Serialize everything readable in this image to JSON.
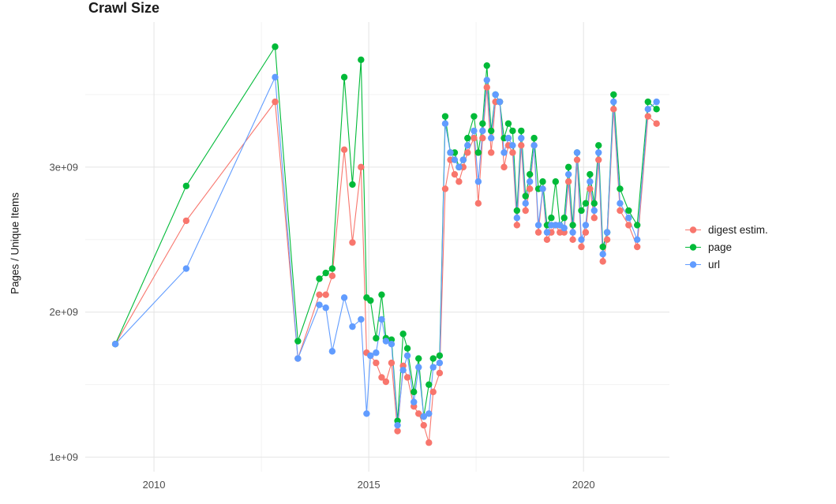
{
  "chart_data": {
    "type": "line",
    "title": "Crawl Size",
    "xlabel": "",
    "ylabel": "Pages / Unique Items",
    "grid": true,
    "legend_position": "right",
    "xlim": [
      2008.4,
      2022.0
    ],
    "ylim": [
      900000000.0,
      4000000000.0
    ],
    "x_ticks": [
      2010,
      2015,
      2020
    ],
    "x_tick_labels": [
      "2010",
      "2015",
      "2020"
    ],
    "y_ticks": [
      1000000000.0,
      2000000000.0,
      3000000000.0
    ],
    "y_tick_labels": [
      "1e+09",
      "2e+09",
      "3e+09"
    ],
    "x": [
      2009.1,
      2010.75,
      2012.82,
      2013.35,
      2013.85,
      2014.0,
      2014.15,
      2014.43,
      2014.62,
      2014.82,
      2014.95,
      2015.04,
      2015.17,
      2015.3,
      2015.4,
      2015.53,
      2015.67,
      2015.8,
      2015.9,
      2016.05,
      2016.16,
      2016.28,
      2016.4,
      2016.5,
      2016.65,
      2016.78,
      2016.9,
      2017.0,
      2017.1,
      2017.2,
      2017.3,
      2017.45,
      2017.55,
      2017.65,
      2017.75,
      2017.85,
      2017.95,
      2018.05,
      2018.15,
      2018.25,
      2018.35,
      2018.45,
      2018.55,
      2018.65,
      2018.75,
      2018.85,
      2018.95,
      2019.05,
      2019.15,
      2019.25,
      2019.35,
      2019.45,
      2019.55,
      2019.65,
      2019.75,
      2019.85,
      2019.95,
      2020.05,
      2020.15,
      2020.25,
      2020.35,
      2020.45,
      2020.55,
      2020.7,
      2020.85,
      2021.05,
      2021.25,
      2021.5,
      2021.7
    ],
    "series": [
      {
        "name": "digest estim.",
        "key": "digest-estim",
        "color": "#F8766D",
        "values": [
          1780000000.0,
          2630000000.0,
          3450000000.0,
          1680000000.0,
          2120000000.0,
          2120000000.0,
          2250000000.0,
          3120000000.0,
          2480000000.0,
          3000000000.0,
          1720000000.0,
          1700000000.0,
          1650000000.0,
          1550000000.0,
          1520000000.0,
          1650000000.0,
          1180000000.0,
          1630000000.0,
          1550000000.0,
          1350000000.0,
          1300000000.0,
          1220000000.0,
          1100000000.0,
          1450000000.0,
          1580000000.0,
          2850000000.0,
          3050000000.0,
          2950000000.0,
          2900000000.0,
          3000000000.0,
          3100000000.0,
          3200000000.0,
          2750000000.0,
          3200000000.0,
          3550000000.0,
          3100000000.0,
          3450000000.0,
          3450000000.0,
          3000000000.0,
          3150000000.0,
          3100000000.0,
          2600000000.0,
          3150000000.0,
          2700000000.0,
          2850000000.0,
          3150000000.0,
          2550000000.0,
          2850000000.0,
          2500000000.0,
          2550000000.0,
          2600000000.0,
          2550000000.0,
          2550000000.0,
          2900000000.0,
          2500000000.0,
          3050000000.0,
          2450000000.0,
          2550000000.0,
          2850000000.0,
          2650000000.0,
          3050000000.0,
          2350000000.0,
          2500000000.0,
          3400000000.0,
          2700000000.0,
          2600000000.0,
          2450000000.0,
          3350000000.0,
          3300000000.0
        ]
      },
      {
        "name": "page",
        "key": "page",
        "color": "#00BA38",
        "values": [
          1780000000.0,
          2870000000.0,
          3830000000.0,
          1800000000.0,
          2230000000.0,
          2270000000.0,
          2300000000.0,
          3620000000.0,
          2880000000.0,
          3740000000.0,
          2100000000.0,
          2080000000.0,
          1820000000.0,
          2120000000.0,
          1820000000.0,
          1810000000.0,
          1250000000.0,
          1850000000.0,
          1750000000.0,
          1450000000.0,
          1680000000.0,
          1280000000.0,
          1500000000.0,
          1680000000.0,
          1700000000.0,
          3350000000.0,
          3100000000.0,
          3100000000.0,
          3000000000.0,
          3050000000.0,
          3200000000.0,
          3350000000.0,
          3100000000.0,
          3300000000.0,
          3700000000.0,
          3250000000.0,
          3500000000.0,
          3450000000.0,
          3200000000.0,
          3300000000.0,
          3250000000.0,
          2700000000.0,
          3250000000.0,
          2800000000.0,
          2950000000.0,
          3200000000.0,
          2850000000.0,
          2900000000.0,
          2600000000.0,
          2650000000.0,
          2900000000.0,
          2600000000.0,
          2650000000.0,
          3000000000.0,
          2600000000.0,
          3100000000.0,
          2700000000.0,
          2750000000.0,
          2950000000.0,
          2750000000.0,
          3150000000.0,
          2450000000.0,
          2550000000.0,
          3500000000.0,
          2850000000.0,
          2700000000.0,
          2600000000.0,
          3450000000.0,
          3400000000.0
        ]
      },
      {
        "name": "url",
        "key": "url",
        "color": "#619CFF",
        "values": [
          1780000000.0,
          2300000000.0,
          3620000000.0,
          1680000000.0,
          2050000000.0,
          2030000000.0,
          1730000000.0,
          2100000000.0,
          1900000000.0,
          1950000000.0,
          1300000000.0,
          1700000000.0,
          1720000000.0,
          1950000000.0,
          1800000000.0,
          1780000000.0,
          1220000000.0,
          1600000000.0,
          1700000000.0,
          1380000000.0,
          1620000000.0,
          1280000000.0,
          1300000000.0,
          1620000000.0,
          1650000000.0,
          3300000000.0,
          3100000000.0,
          3050000000.0,
          3000000000.0,
          3050000000.0,
          3150000000.0,
          3250000000.0,
          2900000000.0,
          3250000000.0,
          3600000000.0,
          3200000000.0,
          3500000000.0,
          3450000000.0,
          3100000000.0,
          3200000000.0,
          3150000000.0,
          2650000000.0,
          3200000000.0,
          2750000000.0,
          2900000000.0,
          3150000000.0,
          2600000000.0,
          2850000000.0,
          2550000000.0,
          2600000000.0,
          2600000000.0,
          2600000000.0,
          2580000000.0,
          2950000000.0,
          2550000000.0,
          3100000000.0,
          2500000000.0,
          2600000000.0,
          2900000000.0,
          2700000000.0,
          3100000000.0,
          2400000000.0,
          2550000000.0,
          3450000000.0,
          2750000000.0,
          2650000000.0,
          2500000000.0,
          3400000000.0,
          3450000000.0
        ]
      }
    ]
  }
}
